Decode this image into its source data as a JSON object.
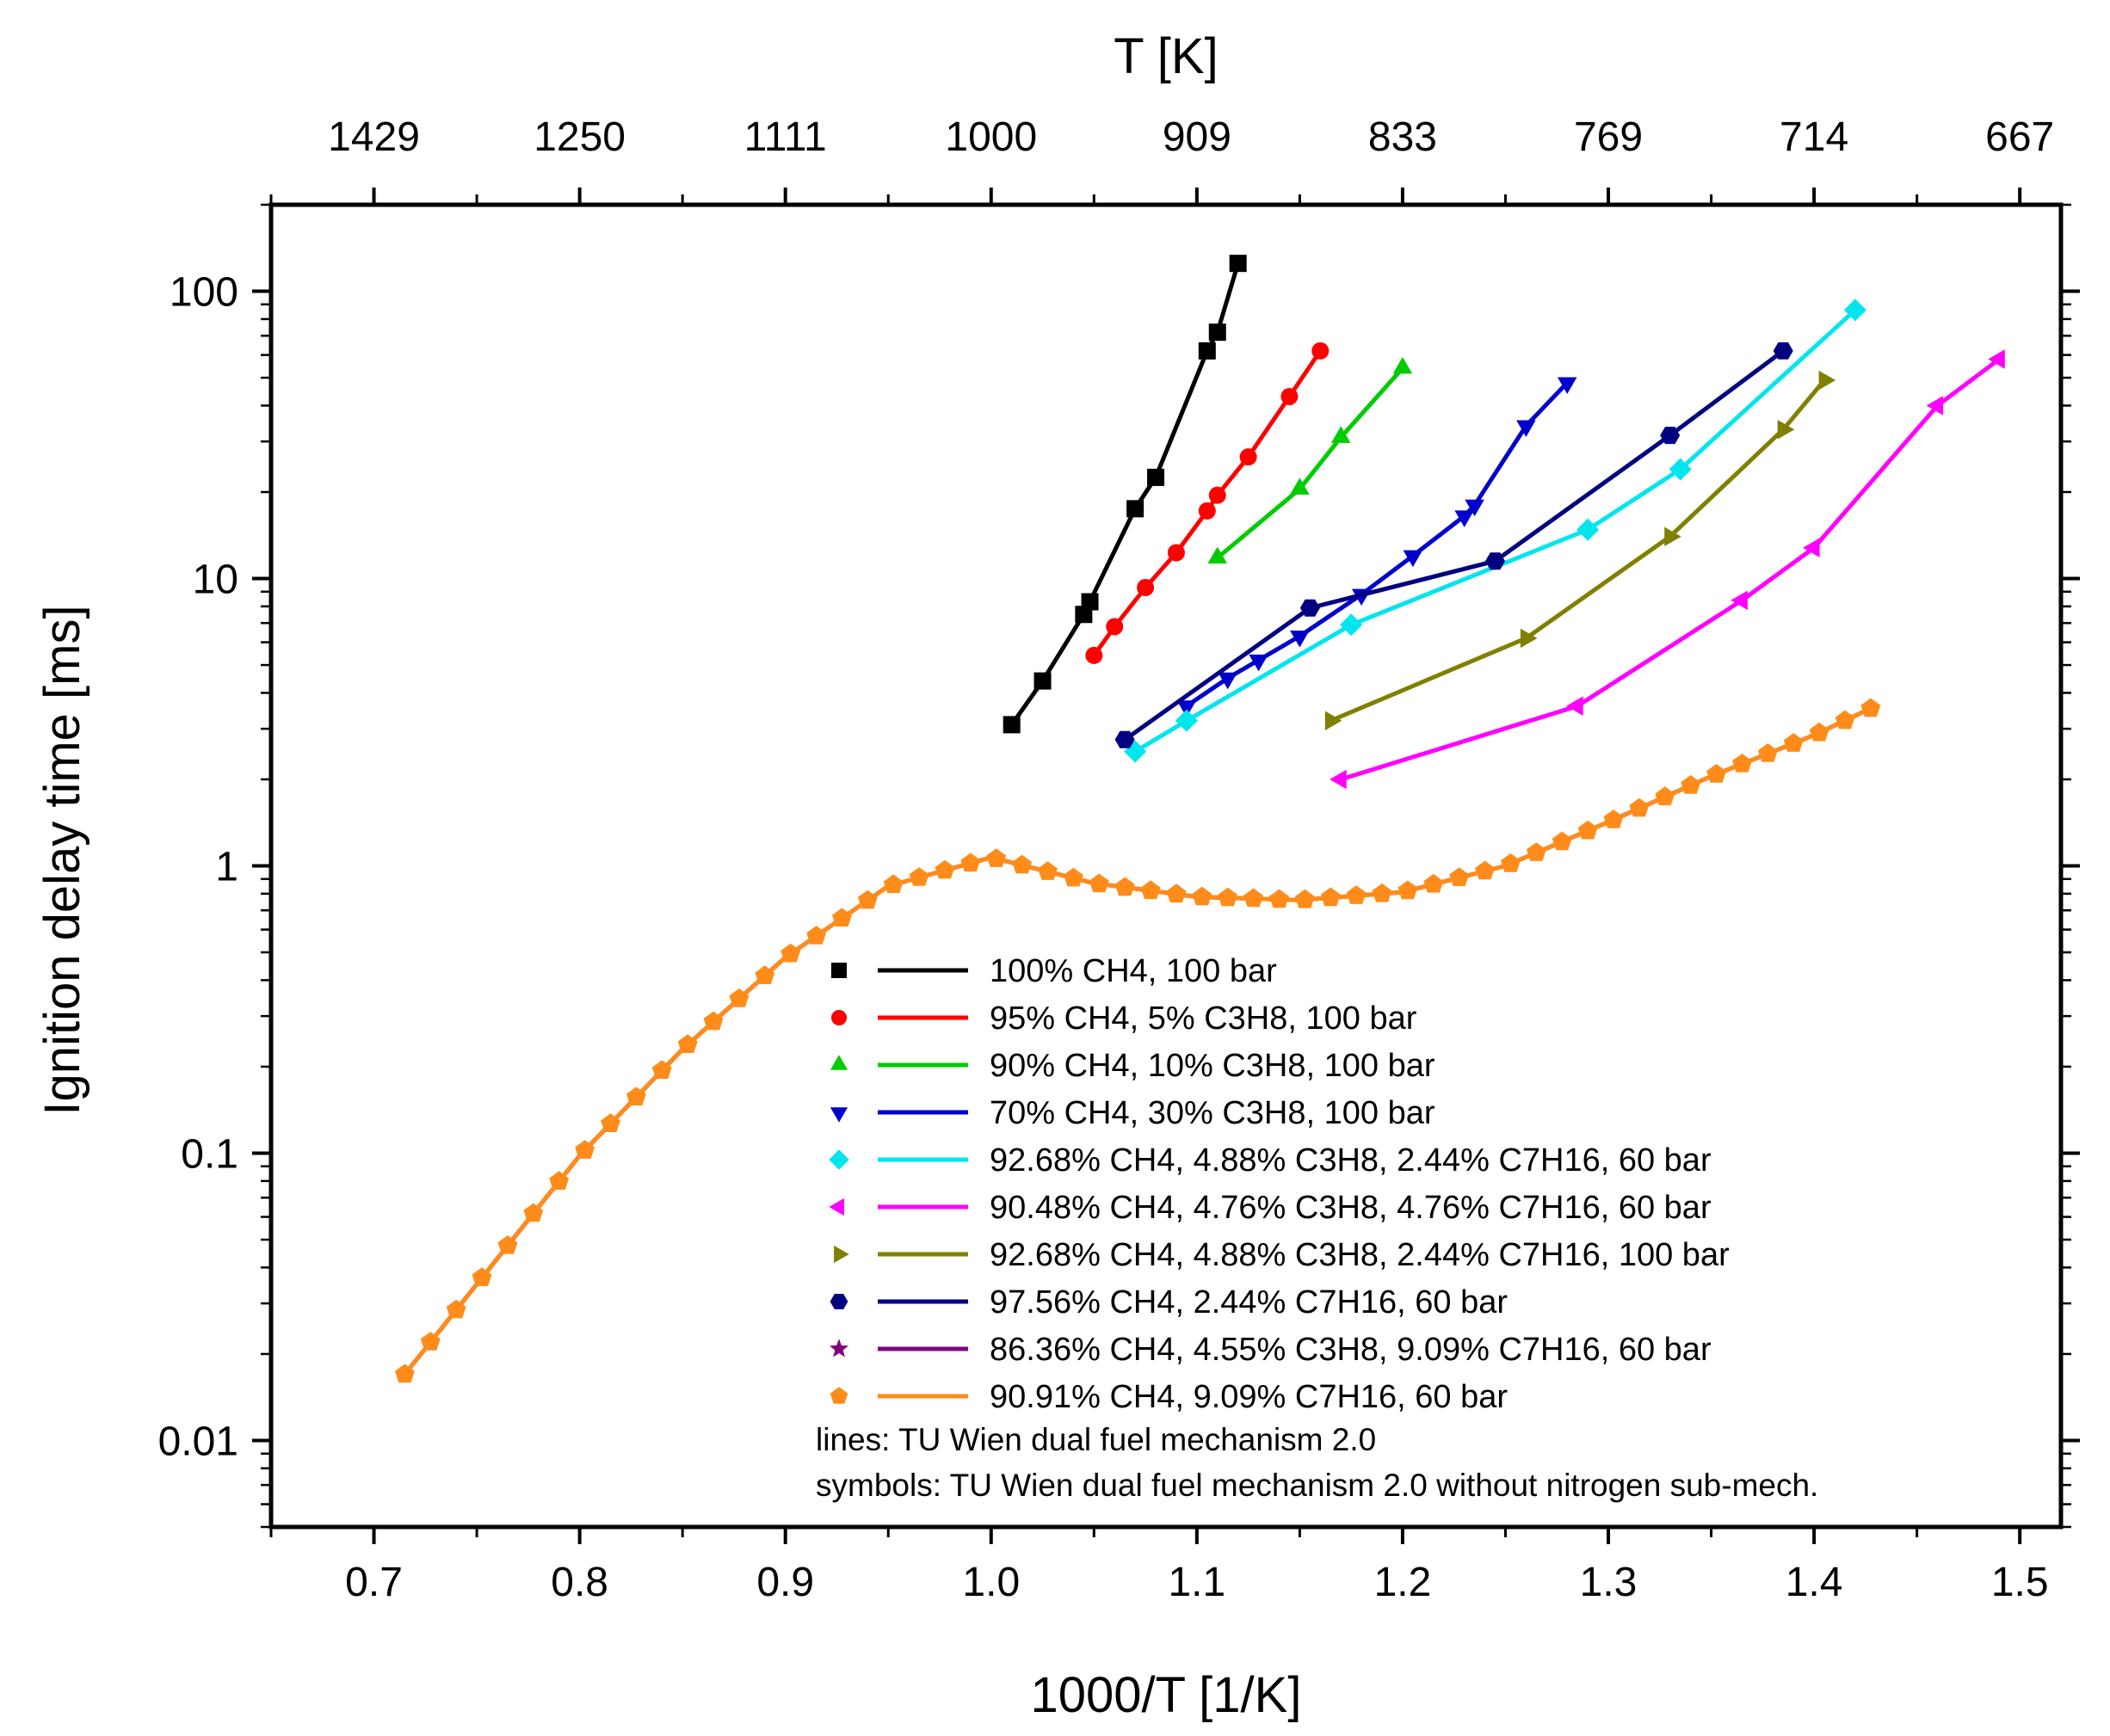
{
  "chart_data": {
    "type": "line",
    "xlabel": "1000/T [1/K]",
    "ylabel": "Ignition delay time [ms]",
    "top_xlabel": "T [K]",
    "xlim": [
      0.65,
      1.52
    ],
    "ylim": [
      0.005,
      200
    ],
    "yscale": "log",
    "x_ticks": [
      "0.7",
      "0.8",
      "0.9",
      "1.0",
      "1.1",
      "1.2",
      "1.3",
      "1.4",
      "1.5"
    ],
    "y_ticks": [
      "0.01",
      "0.1",
      "1",
      "10",
      "100"
    ],
    "top_ticks": [
      "1429",
      "1250",
      "1111",
      "1000",
      "909",
      "833",
      "769",
      "714",
      "667"
    ],
    "legend_position": "bottom-right",
    "series": [
      {
        "name": "100% CH4, 100 bar",
        "color": "#000000",
        "marker": "square",
        "x": [
          1.01,
          1.025,
          1.045,
          1.048,
          1.07,
          1.08,
          1.105,
          1.11,
          1.12
        ],
        "y": [
          3.1,
          4.4,
          7.5,
          8.3,
          17.5,
          22.5,
          62,
          72,
          125
        ]
      },
      {
        "name": "95% CH4, 5% C3H8, 100 bar",
        "color": "#ff0000",
        "marker": "circle",
        "x": [
          1.05,
          1.06,
          1.075,
          1.09,
          1.105,
          1.11,
          1.125,
          1.145,
          1.16
        ],
        "y": [
          5.4,
          6.8,
          9.3,
          12.3,
          17.2,
          19.5,
          26.5,
          43,
          62
        ]
      },
      {
        "name": "90% CH4, 10% C3H8, 100 bar",
        "color": "#00cc00",
        "marker": "triangle-up",
        "x": [
          1.11,
          1.15,
          1.17,
          1.2
        ],
        "y": [
          11.8,
          20.5,
          31,
          54
        ]
      },
      {
        "name": "70% CH4, 30% C3H8, 100 bar",
        "color": "#0000cc",
        "marker": "triangle-down",
        "x": [
          1.095,
          1.115,
          1.13,
          1.15,
          1.18,
          1.205,
          1.23,
          1.235,
          1.26,
          1.28
        ],
        "y": [
          3.6,
          4.5,
          5.2,
          6.3,
          8.8,
          12,
          16.5,
          18,
          34,
          48
        ]
      },
      {
        "name": "92.68% CH4, 4.88% C3H8, 2.44% C7H16, 60 bar",
        "color": "#00e5ee",
        "marker": "diamond",
        "x": [
          1.07,
          1.095,
          1.175,
          1.29,
          1.335,
          1.42
        ],
        "y": [
          2.5,
          3.2,
          6.9,
          14.8,
          24,
          86
        ]
      },
      {
        "name": "90.48% CH4, 4.76% C3H8, 4.76% C7H16, 60 bar",
        "color": "#ff00ff",
        "marker": "triangle-left",
        "x": [
          1.17,
          1.285,
          1.365,
          1.4,
          1.46,
          1.49
        ],
        "y": [
          2.0,
          3.6,
          8.4,
          12.8,
          40,
          58
        ]
      },
      {
        "name": "92.68% CH4, 4.88% C3H8, 2.44% C7H16, 100 bar",
        "color": "#808000",
        "marker": "triangle-right",
        "x": [
          1.165,
          1.26,
          1.33,
          1.385,
          1.405
        ],
        "y": [
          3.2,
          6.2,
          14,
          33,
          49
        ]
      },
      {
        "name": "97.56% CH4, 2.44% C7H16, 60 bar",
        "color": "#000080",
        "marker": "hexagon",
        "x": [
          1.065,
          1.155,
          1.245,
          1.33,
          1.385
        ],
        "y": [
          2.75,
          7.9,
          11.5,
          31.5,
          62
        ]
      },
      {
        "name": "86.36% CH4, 4.55% C3H8, 9.09% C7H16, 60 bar",
        "color": "#800080",
        "marker": "star",
        "x": [
          0.715,
          0.75,
          0.8,
          0.85,
          0.9,
          0.95,
          1.0,
          1.05,
          1.1,
          1.15,
          1.2,
          1.25,
          1.3,
          1.35,
          1.4,
          1.43
        ],
        "y": [
          0.017,
          0.035,
          0.098,
          0.23,
          0.48,
          0.85,
          1.07,
          0.87,
          0.78,
          0.76,
          0.81,
          1.0,
          1.42,
          2.05,
          2.85,
          3.6
        ]
      },
      {
        "name": "90.91% CH4, 9.09% C7H16, 60 bar",
        "color": "#ff8c1a",
        "marker": "pentagon",
        "x": [
          0.715,
          0.75,
          0.8,
          0.85,
          0.9,
          0.95,
          1.0,
          1.05,
          1.1,
          1.15,
          1.2,
          1.25,
          1.3,
          1.35,
          1.4,
          1.43
        ],
        "y": [
          0.017,
          0.035,
          0.098,
          0.23,
          0.48,
          0.85,
          1.07,
          0.87,
          0.78,
          0.76,
          0.81,
          1.0,
          1.42,
          2.05,
          2.85,
          3.6
        ]
      }
    ],
    "annotations": [
      "lines: TU Wien dual fuel mechanism 2.0",
      "symbols: TU Wien dual fuel mechanism 2.0 without nitrogen sub-mech."
    ]
  }
}
